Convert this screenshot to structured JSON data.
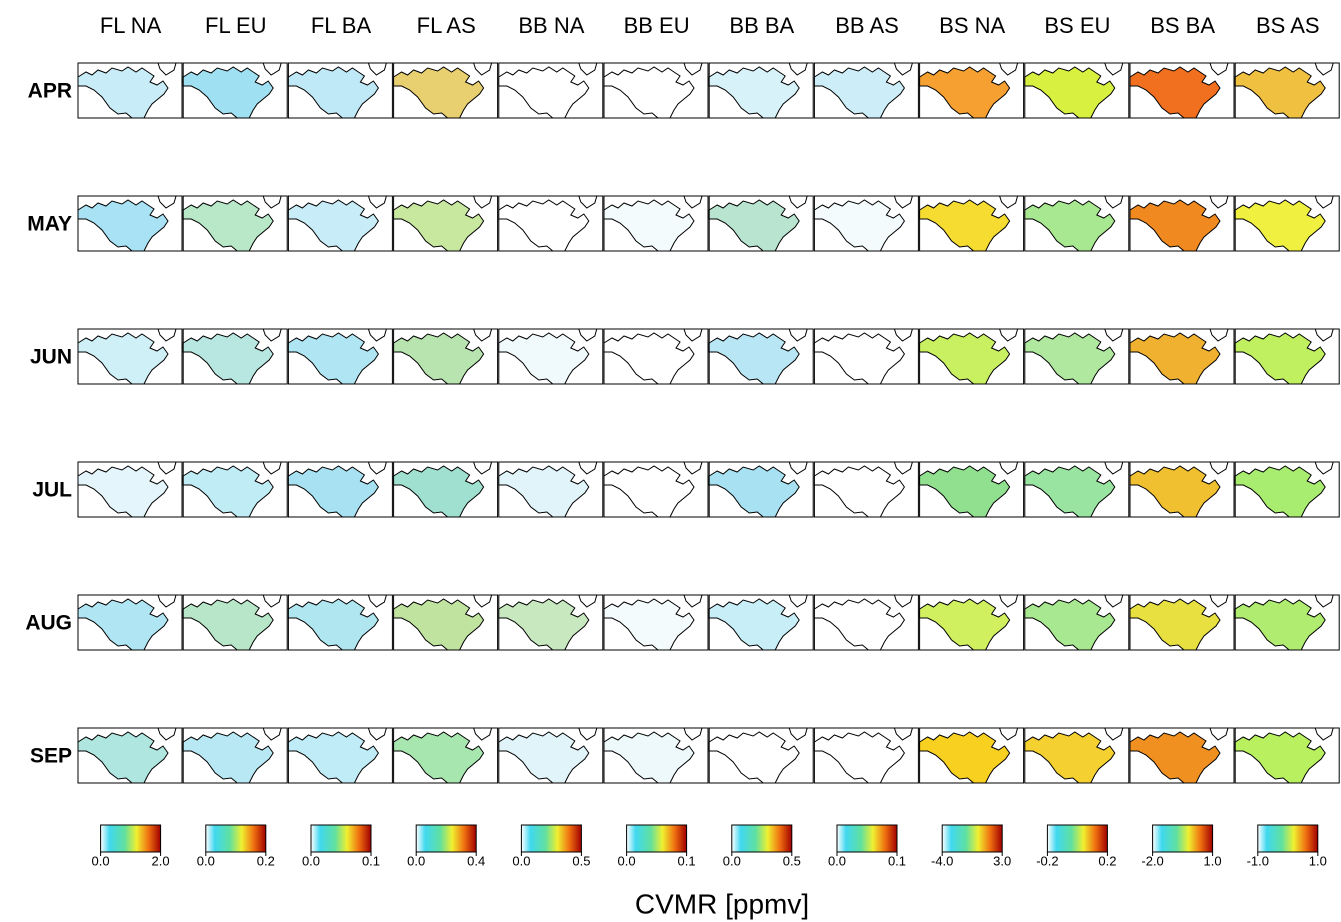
{
  "columns": [
    "FL NA",
    "FL EU",
    "FL BA",
    "FL AS",
    "BB NA",
    "BB EU",
    "BB BA",
    "BB AS",
    "BS NA",
    "BS EU",
    "BS BA",
    "BS AS"
  ],
  "rows": [
    "APR",
    "MAY",
    "JUN",
    "JUL",
    "AUG",
    "SEP"
  ],
  "panel_colors": [
    [
      "#c8edf8",
      "#9fe0f2",
      "#bfe9f7",
      "#e8d070",
      "#ffffff",
      "#ffffff",
      "#d8f2fa",
      "#cdeef8",
      "#f5a030",
      "#d8f040",
      "#f07020",
      "#f0c040"
    ],
    [
      "#a8e2f4",
      "#b8e8c8",
      "#c8edf8",
      "#c8e8a0",
      "#ffffff",
      "#f4fbfd",
      "#b8e4d0",
      "#f4fbfd",
      "#f6dc30",
      "#a8e890",
      "#f08a20",
      "#f0f040"
    ],
    [
      "#d0f0f8",
      "#b8e6e0",
      "#b0e6f4",
      "#b8e4b0",
      "#f0f9fc",
      "#ffffff",
      "#b8e6f4",
      "#ffffff",
      "#c8f060",
      "#b0e8a0",
      "#f0b030",
      "#c0f060"
    ],
    [
      "#e4f6fc",
      "#c0ecf6",
      "#a8e2f2",
      "#a0e0d0",
      "#e0f4fa",
      "#ffffff",
      "#a8e2f2",
      "#ffffff",
      "#90e090",
      "#98e4a0",
      "#f0c030",
      "#a8ec70"
    ],
    [
      "#b0e6f4",
      "#b8e6c8",
      "#b0e6f0",
      "#c0e4a0",
      "#c8e8c0",
      "#f4fbfd",
      "#c8eef8",
      "#ffffff",
      "#d0f060",
      "#a8e890",
      "#e8e040",
      "#b0ec70"
    ],
    [
      "#b0e6e0",
      "#b8e8f4",
      "#c0ecf8",
      "#a8e6b0",
      "#e0f4fa",
      "#eef9fc",
      "#ffffff",
      "#ffffff",
      "#f8d020",
      "#f4d030",
      "#f09020",
      "#b8f060"
    ]
  ],
  "colorbars": [
    {
      "ticks": [
        {
          "value": 0,
          "label": "0.0"
        },
        {
          "value": 2,
          "label": "2.0"
        }
      ]
    },
    {
      "ticks": [
        {
          "value": 0,
          "label": "0.0"
        },
        {
          "value": 0.2,
          "label": "0.2"
        }
      ]
    },
    {
      "ticks": [
        {
          "value": 0,
          "label": "0.0"
        },
        {
          "value": 0.1,
          "label": "0.1"
        }
      ]
    },
    {
      "ticks": [
        {
          "value": 0,
          "label": "0.0"
        },
        {
          "value": 0.4,
          "label": "0.4"
        }
      ]
    },
    {
      "ticks": [
        {
          "value": 0,
          "label": "0.0"
        },
        {
          "value": 0.5,
          "label": "0.5"
        }
      ]
    },
    {
      "ticks": [
        {
          "value": 0,
          "label": "0.0"
        },
        {
          "value": 0.1,
          "label": "0.1"
        }
      ]
    },
    {
      "ticks": [
        {
          "value": 0,
          "label": "0.0"
        },
        {
          "value": 0.5,
          "label": "0.5"
        }
      ]
    },
    {
      "ticks": [
        {
          "value": 0,
          "label": "0.0"
        },
        {
          "value": 0.1,
          "label": "0.1"
        }
      ]
    },
    {
      "ticks": [
        {
          "value": -4,
          "label": "-4.0"
        },
        {
          "value": 3,
          "label": "3.0"
        }
      ]
    },
    {
      "ticks": [
        {
          "value": -0.2,
          "label": "-0.2"
        },
        {
          "value": 0.2,
          "label": "0.2"
        }
      ]
    },
    {
      "ticks": [
        {
          "value": -2,
          "label": "-2.0"
        },
        {
          "value": 1,
          "label": "1.0"
        }
      ]
    },
    {
      "ticks": [
        {
          "value": -1,
          "label": "-1.0"
        },
        {
          "value": 1,
          "label": "1.0"
        }
      ]
    }
  ],
  "colorbar_title": "CVMR [ppmv]"
}
